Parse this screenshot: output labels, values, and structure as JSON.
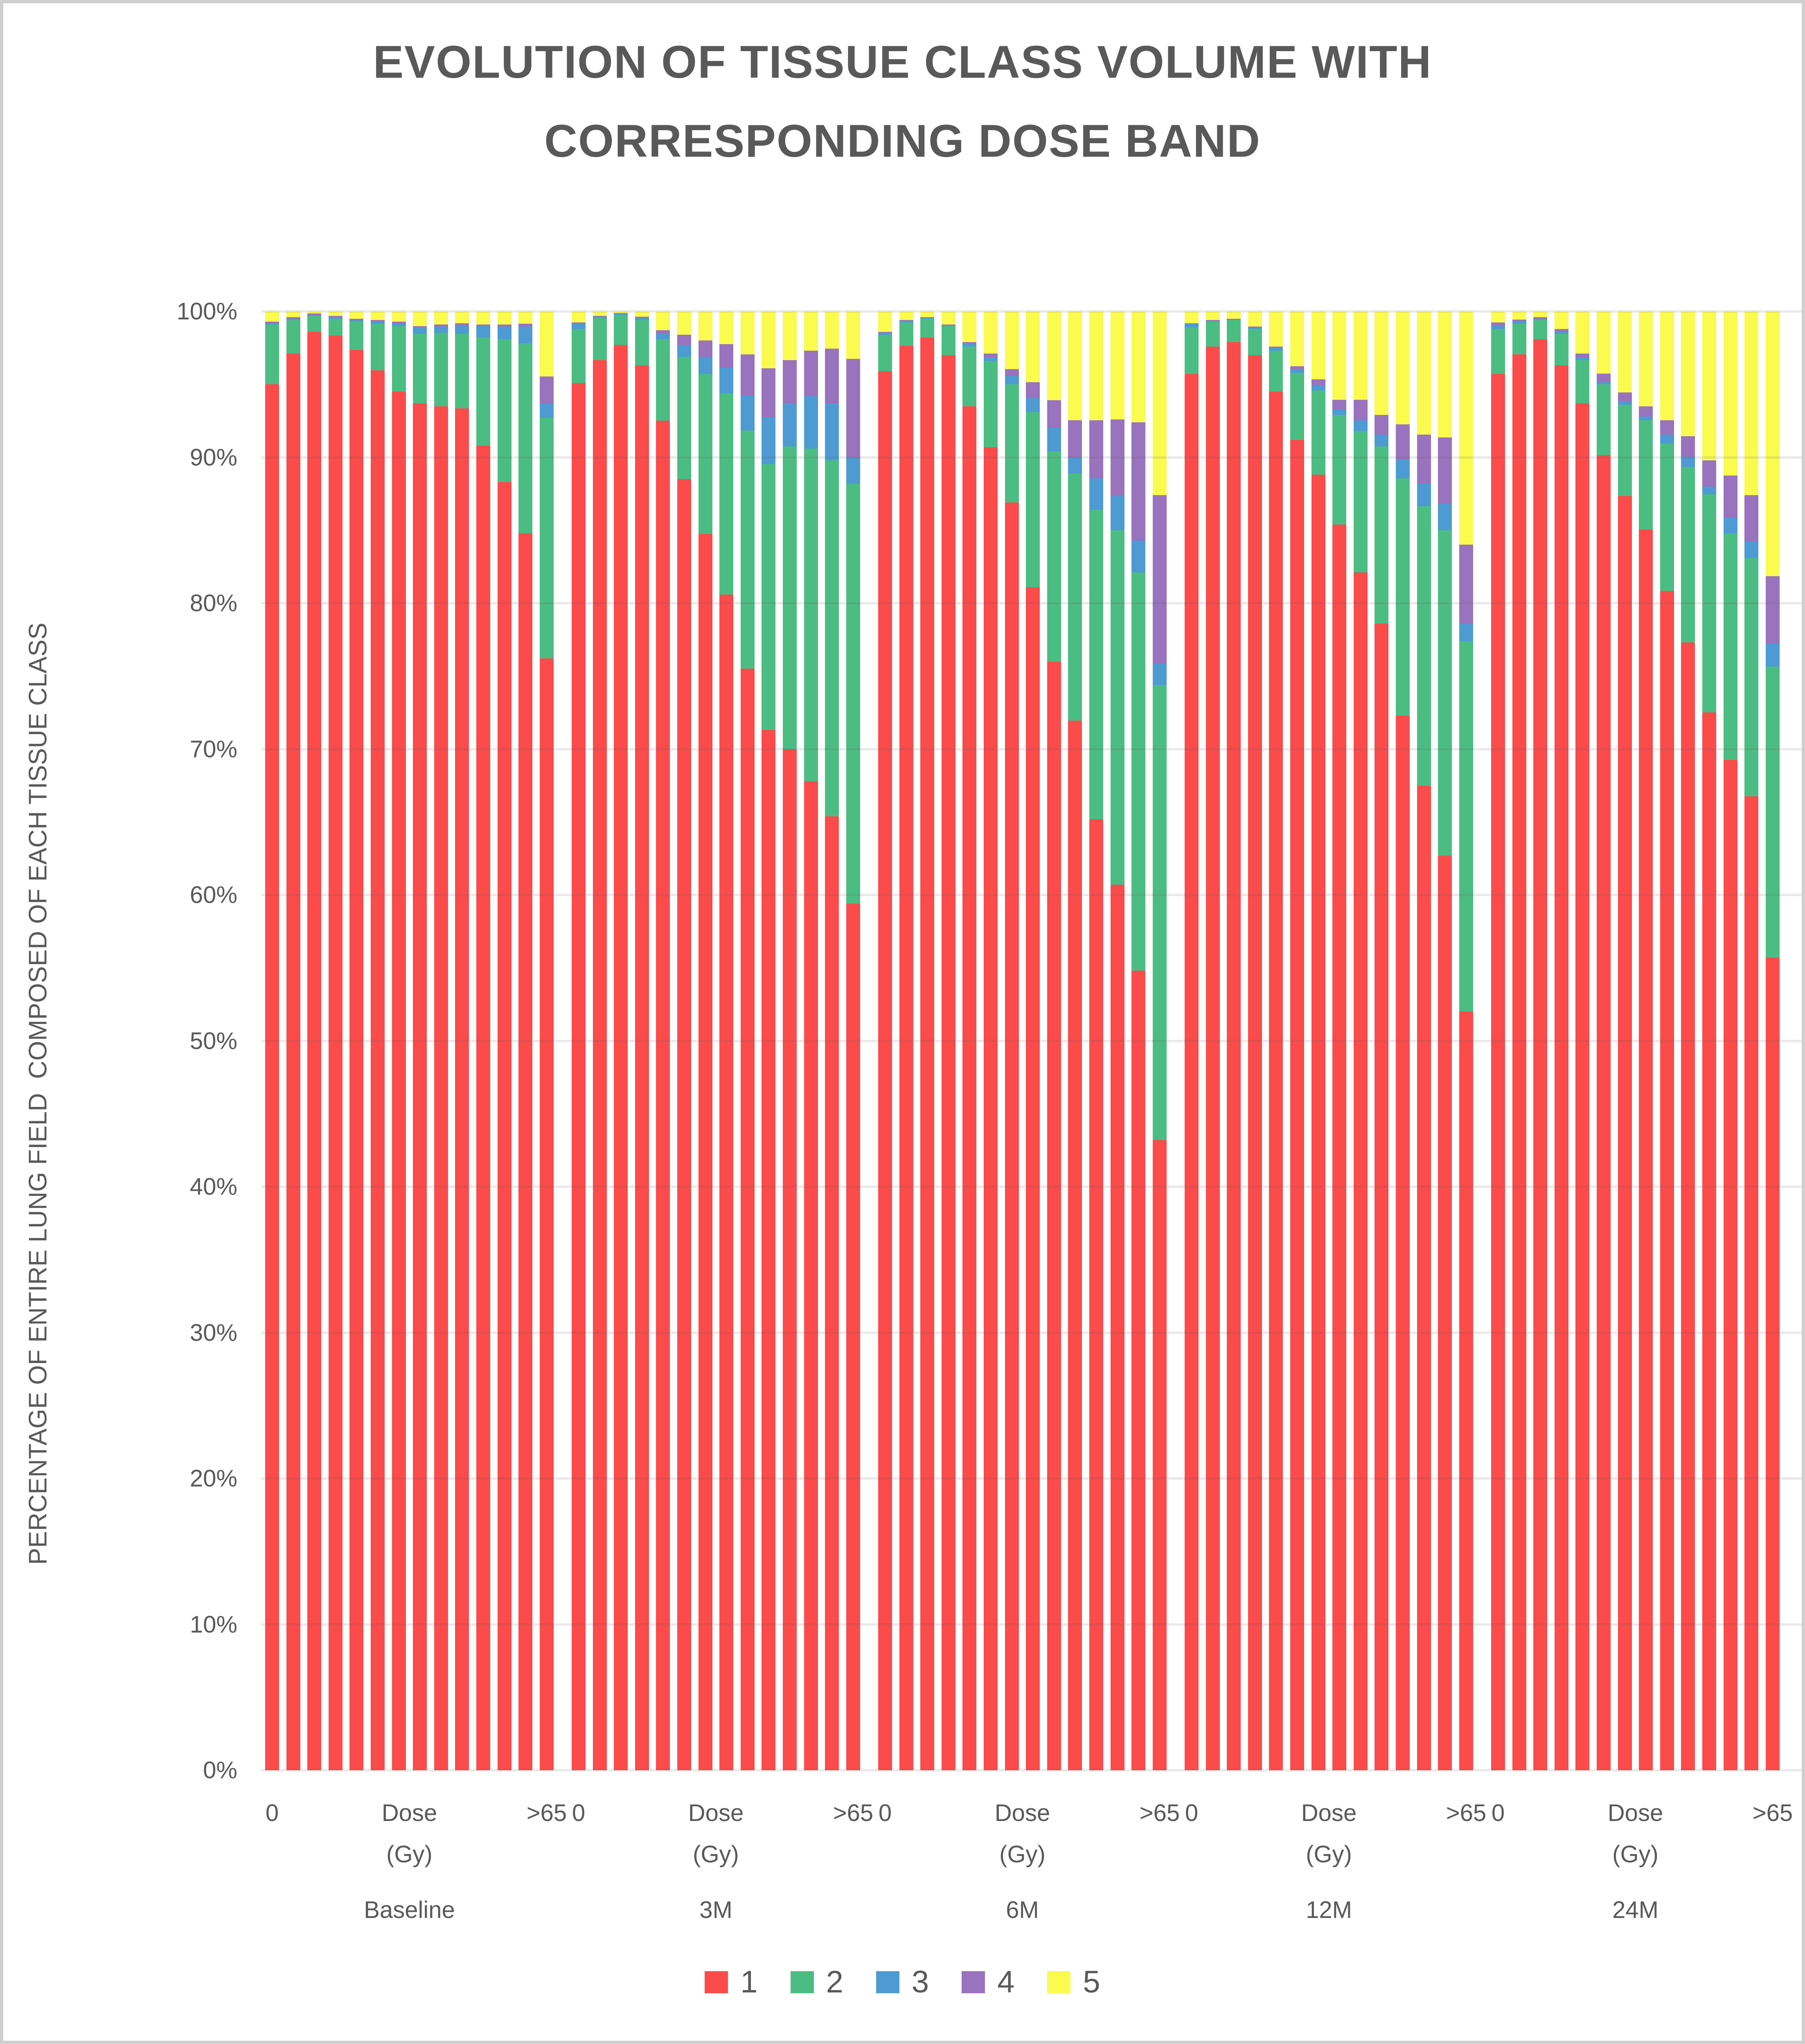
{
  "title": "EVOLUTION OF TISSUE CLASS VOLUME WITH CORRESPONDING DOSE BAND",
  "y_axis_title": "PERCENTAGE OF ENTIRE LUNG FIELD  COMPOSED OF EACH TISSUE CLASS",
  "colors": {
    "text": "#595959",
    "grid": "#E8E8E8",
    "border": "#CFCFCF",
    "class1": "#FB4B4B",
    "class2": "#4CBD82",
    "class3": "#4E9BD3",
    "class4": "#9973BD",
    "class5": "#FBFA4F"
  },
  "chart_data": {
    "type": "bar",
    "stacked": true,
    "title": "EVOLUTION OF TISSUE CLASS VOLUME WITH CORRESPONDING DOSE BAND",
    "ylabel": "PERCENTAGE OF ENTIRE LUNG FIELD  COMPOSED OF EACH TISSUE CLASS",
    "ylim": [
      0,
      100
    ],
    "yticks": [
      "0%",
      "10%",
      "20%",
      "30%",
      "40%",
      "50%",
      "60%",
      "70%",
      "80%",
      "90%",
      "100%"
    ],
    "grid": true,
    "legend_position": "bottom",
    "group_axis_ticks": {
      "first_tick": "0",
      "mid_tick_line1": "Dose",
      "mid_tick_line2": "(Gy)",
      "last_tick": ">65"
    },
    "series": [
      {
        "name": "1",
        "color": "#FB4B4B"
      },
      {
        "name": "2",
        "color": "#4CBD82"
      },
      {
        "name": "3",
        "color": "#4E9BD3"
      },
      {
        "name": "4",
        "color": "#9973BD"
      },
      {
        "name": "5",
        "color": "#FBFA4F"
      }
    ],
    "groups": [
      {
        "label": "Baseline",
        "bars": [
          [
            95.0,
            4.1,
            0.1,
            0.1,
            0.7
          ],
          [
            97.1,
            2.3,
            0.1,
            0.1,
            0.4
          ],
          [
            98.6,
            1.1,
            0.05,
            0.1,
            0.15
          ],
          [
            98.35,
            1.15,
            0.1,
            0.1,
            0.3
          ],
          [
            97.35,
            1.95,
            0.1,
            0.1,
            0.5
          ],
          [
            95.95,
            3.2,
            0.15,
            0.1,
            0.6
          ],
          [
            94.5,
            4.5,
            0.15,
            0.15,
            0.7
          ],
          [
            93.7,
            4.75,
            0.45,
            0.1,
            1.0
          ],
          [
            93.5,
            5.05,
            0.4,
            0.15,
            0.9
          ],
          [
            93.35,
            5.1,
            0.6,
            0.15,
            0.8
          ],
          [
            90.8,
            7.4,
            0.8,
            0.1,
            0.9
          ],
          [
            88.3,
            9.8,
            0.85,
            0.15,
            0.9
          ],
          [
            84.8,
            13.0,
            1.15,
            0.2,
            0.85
          ],
          [
            76.2,
            16.5,
            0.95,
            1.9,
            4.45
          ]
        ]
      },
      {
        "label": "3M",
        "bars": [
          [
            95.1,
            3.7,
            0.35,
            0.1,
            0.75
          ],
          [
            96.65,
            2.9,
            0.1,
            0.05,
            0.3
          ],
          [
            97.7,
            2.05,
            0.1,
            0.05,
            0.1
          ],
          [
            96.3,
            3.1,
            0.15,
            0.1,
            0.35
          ],
          [
            92.5,
            5.6,
            0.4,
            0.2,
            1.3
          ],
          [
            88.5,
            8.4,
            0.8,
            0.7,
            1.6
          ],
          [
            84.75,
            10.95,
            1.2,
            1.1,
            2.0
          ],
          [
            80.6,
            13.8,
            1.75,
            1.6,
            2.25
          ],
          [
            75.5,
            16.35,
            2.4,
            2.8,
            2.95
          ],
          [
            71.3,
            18.25,
            3.2,
            3.35,
            3.9
          ],
          [
            70.0,
            20.75,
            2.95,
            2.95,
            3.35
          ],
          [
            67.8,
            22.8,
            3.6,
            3.1,
            2.7
          ],
          [
            65.4,
            24.4,
            3.9,
            3.75,
            2.55
          ],
          [
            59.4,
            28.8,
            1.75,
            6.8,
            3.25
          ]
        ]
      },
      {
        "label": "6M",
        "bars": [
          [
            95.9,
            2.5,
            0.15,
            0.05,
            1.4
          ],
          [
            97.65,
            1.6,
            0.1,
            0.05,
            0.6
          ],
          [
            98.2,
            1.3,
            0.05,
            0.05,
            0.4
          ],
          [
            97.0,
            2.0,
            0.05,
            0.05,
            0.9
          ],
          [
            93.5,
            4.1,
            0.2,
            0.1,
            2.1
          ],
          [
            90.7,
            5.9,
            0.25,
            0.25,
            2.9
          ],
          [
            86.9,
            8.1,
            0.6,
            0.45,
            3.95
          ],
          [
            81.1,
            12.0,
            0.95,
            1.1,
            4.85
          ],
          [
            76.0,
            14.4,
            1.6,
            1.9,
            6.1
          ],
          [
            71.95,
            16.95,
            1.05,
            2.6,
            7.45
          ],
          [
            65.2,
            21.2,
            2.15,
            4.0,
            7.45
          ],
          [
            60.7,
            24.3,
            2.4,
            5.2,
            7.4
          ],
          [
            54.8,
            27.3,
            2.2,
            8.1,
            7.6
          ],
          [
            43.2,
            31.2,
            1.45,
            11.55,
            12.6
          ]
        ]
      },
      {
        "label": "12M",
        "bars": [
          [
            95.7,
            3.2,
            0.25,
            0.05,
            0.8
          ],
          [
            97.6,
            1.7,
            0.05,
            0.05,
            0.6
          ],
          [
            97.9,
            1.5,
            0.05,
            0.05,
            0.5
          ],
          [
            97.0,
            1.8,
            0.1,
            0.05,
            1.05
          ],
          [
            94.5,
            2.8,
            0.2,
            0.1,
            2.4
          ],
          [
            91.2,
            4.6,
            0.25,
            0.2,
            3.75
          ],
          [
            88.8,
            5.8,
            0.3,
            0.45,
            4.65
          ],
          [
            85.4,
            7.5,
            0.4,
            0.65,
            6.05
          ],
          [
            82.1,
            9.7,
            0.75,
            1.4,
            6.05
          ],
          [
            78.6,
            12.15,
            0.8,
            1.35,
            7.1
          ],
          [
            72.3,
            16.25,
            1.3,
            2.4,
            7.75
          ],
          [
            67.5,
            19.15,
            1.55,
            3.35,
            8.45
          ],
          [
            62.7,
            22.3,
            1.85,
            4.5,
            8.65
          ],
          [
            52.0,
            25.4,
            1.2,
            5.4,
            16.0
          ]
        ]
      },
      {
        "label": "24M",
        "bars": [
          [
            95.7,
            3.1,
            0.25,
            0.2,
            0.75
          ],
          [
            97.05,
            2.1,
            0.2,
            0.1,
            0.55
          ],
          [
            98.1,
            1.3,
            0.1,
            0.1,
            0.4
          ],
          [
            96.3,
            2.15,
            0.15,
            0.2,
            1.2
          ],
          [
            93.7,
            2.95,
            0.2,
            0.25,
            2.9
          ],
          [
            90.15,
            4.85,
            0.15,
            0.6,
            4.25
          ],
          [
            87.35,
            6.25,
            0.2,
            0.65,
            5.55
          ],
          [
            85.05,
            7.5,
            0.25,
            0.7,
            6.5
          ],
          [
            80.85,
            10.1,
            0.6,
            1.0,
            7.45
          ],
          [
            77.3,
            12.05,
            0.7,
            1.4,
            8.55
          ],
          [
            72.5,
            14.95,
            0.55,
            1.8,
            10.2
          ],
          [
            69.25,
            15.55,
            1.05,
            2.9,
            11.25
          ],
          [
            66.75,
            16.35,
            1.1,
            3.2,
            12.6
          ],
          [
            55.7,
            19.95,
            1.6,
            4.6,
            18.15
          ]
        ]
      }
    ]
  }
}
